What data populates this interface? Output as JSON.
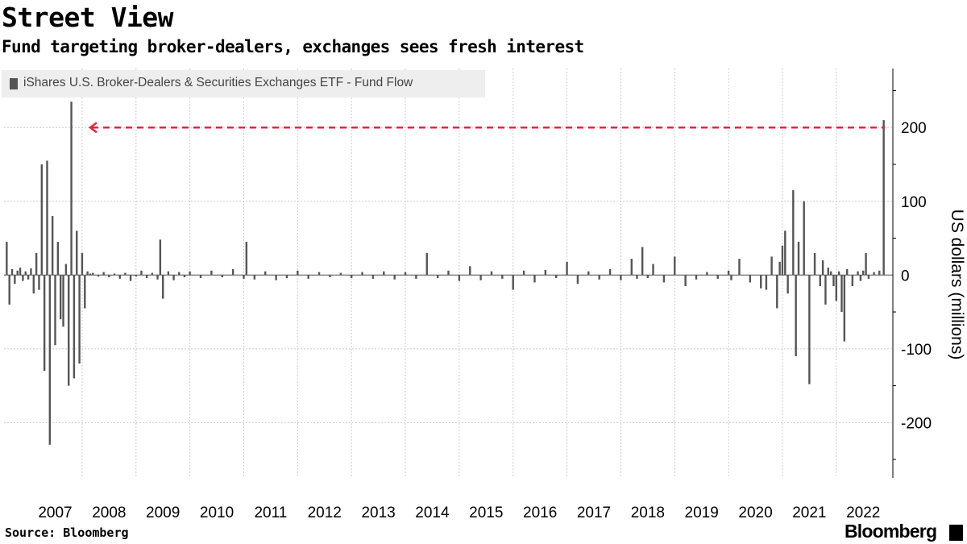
{
  "header": {
    "title": "Street View",
    "subtitle": "Fund targeting broker-dealers, exchanges sees fresh interest"
  },
  "footer": {
    "source": "Source: Bloomberg",
    "brand": "Bloomberg"
  },
  "colors": {
    "bars": "#555555",
    "reference_line": "#e8233f",
    "grid": "#cccccc",
    "legend_bg": "#eeeeee"
  },
  "chart_data": {
    "type": "bar",
    "legend": [
      "iShares U.S. Broker-Dealers & Securities Exchanges ETF - Fund Flow"
    ],
    "legend_position": "top-left",
    "ylabel": "US dollars (millions)",
    "y_axis_side": "right",
    "ylim": [
      -275,
      280
    ],
    "yticks": [
      200,
      100,
      0,
      -100,
      -200
    ],
    "xlim": [
      2006.55,
      2023.05
    ],
    "xticks": [
      "2007",
      "2008",
      "2009",
      "2010",
      "2011",
      "2012",
      "2013",
      "2014",
      "2015",
      "2016",
      "2017",
      "2018",
      "2019",
      "2020",
      "2021",
      "2022"
    ],
    "grid": true,
    "reference_line": {
      "value": 200,
      "style": "dashed",
      "arrow": "left",
      "x_start": 2008.15,
      "x_end": 2022.9
    },
    "series": [
      {
        "name": "iShares U.S. Broker-Dealers & Securities Exchanges ETF - Fund Flow",
        "x": [
          2006.6,
          2006.65,
          2006.7,
          2006.75,
          2006.8,
          2006.85,
          2006.9,
          2006.95,
          2007.0,
          2007.05,
          2007.1,
          2007.15,
          2007.2,
          2007.25,
          2007.3,
          2007.35,
          2007.4,
          2007.45,
          2007.5,
          2007.55,
          2007.6,
          2007.65,
          2007.7,
          2007.75,
          2007.8,
          2007.85,
          2007.9,
          2007.95,
          2008.0,
          2008.05,
          2008.1,
          2008.15,
          2008.2,
          2008.3,
          2008.4,
          2008.5,
          2008.6,
          2008.7,
          2008.8,
          2008.9,
          2009.0,
          2009.1,
          2009.2,
          2009.3,
          2009.4,
          2009.45,
          2009.5,
          2009.6,
          2009.7,
          2009.8,
          2009.9,
          2010.0,
          2010.2,
          2010.4,
          2010.6,
          2010.8,
          2011.0,
          2011.05,
          2011.2,
          2011.4,
          2011.6,
          2011.8,
          2012.0,
          2012.2,
          2012.4,
          2012.6,
          2012.8,
          2013.0,
          2013.2,
          2013.4,
          2013.6,
          2013.8,
          2014.0,
          2014.2,
          2014.4,
          2014.6,
          2014.8,
          2015.0,
          2015.2,
          2015.4,
          2015.6,
          2015.8,
          2016.0,
          2016.2,
          2016.4,
          2016.6,
          2016.8,
          2017.0,
          2017.2,
          2017.4,
          2017.6,
          2017.8,
          2018.0,
          2018.2,
          2018.3,
          2018.4,
          2018.5,
          2018.6,
          2018.8,
          2019.0,
          2019.2,
          2019.4,
          2019.6,
          2019.8,
          2020.0,
          2020.05,
          2020.2,
          2020.4,
          2020.6,
          2020.7,
          2020.8,
          2020.9,
          2020.95,
          2021.0,
          2021.05,
          2021.1,
          2021.2,
          2021.25,
          2021.3,
          2021.4,
          2021.5,
          2021.6,
          2021.7,
          2021.75,
          2021.8,
          2021.85,
          2021.9,
          2021.95,
          2022.0,
          2022.05,
          2022.1,
          2022.15,
          2022.2,
          2022.3,
          2022.4,
          2022.45,
          2022.5,
          2022.55,
          2022.6,
          2022.7,
          2022.8,
          2022.88
        ],
        "values": [
          45,
          -40,
          8,
          -12,
          6,
          10,
          -8,
          5,
          -6,
          9,
          -25,
          30,
          -20,
          150,
          -130,
          155,
          -230,
          80,
          -95,
          45,
          -60,
          -70,
          15,
          -150,
          235,
          -140,
          60,
          -120,
          30,
          -45,
          5,
          2,
          3,
          -2,
          4,
          -3,
          2,
          -5,
          3,
          -8,
          -2,
          6,
          -4,
          3,
          -6,
          48,
          -32,
          5,
          -7,
          4,
          -3,
          5,
          -4,
          6,
          -3,
          8,
          -5,
          45,
          -6,
          5,
          -7,
          -4,
          6,
          -5,
          4,
          -3,
          3,
          -4,
          4,
          -5,
          5,
          -6,
          4,
          -5,
          30,
          -4,
          6,
          -8,
          12,
          -7,
          5,
          -5,
          -20,
          6,
          -10,
          7,
          -4,
          18,
          -12,
          5,
          -6,
          8,
          -7,
          22,
          -5,
          38,
          -4,
          15,
          -10,
          25,
          -15,
          -6,
          4,
          -5,
          6,
          -7,
          22,
          -10,
          -18,
          -20,
          25,
          -45,
          18,
          40,
          60,
          -25,
          115,
          -110,
          45,
          100,
          -148,
          30,
          -15,
          20,
          -40,
          10,
          5,
          -15,
          -35,
          5,
          -50,
          -90,
          8,
          -15,
          5,
          -8,
          6,
          30,
          -5,
          4,
          6,
          210
        ]
      }
    ]
  }
}
